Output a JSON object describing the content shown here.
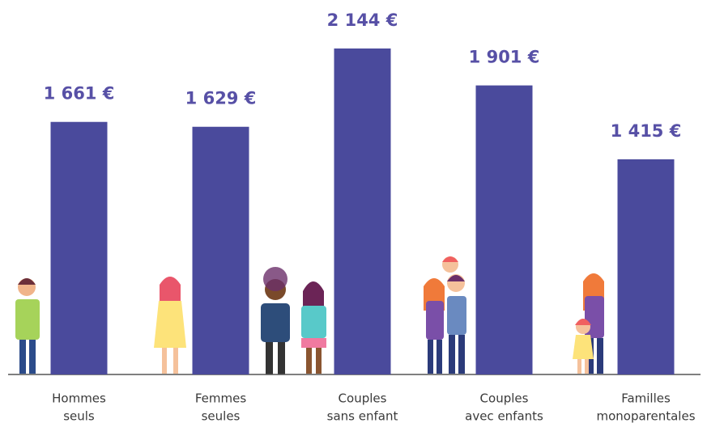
{
  "chart_data": {
    "type": "bar",
    "categories": [
      [
        "Hommes",
        "seuls"
      ],
      [
        "Femmes",
        "seules"
      ],
      [
        "Couples",
        "sans enfant"
      ],
      [
        "Couples",
        "avec enfants"
      ],
      [
        "Familles",
        "monoparentales"
      ]
    ],
    "values": [
      1661,
      1629,
      2144,
      1901,
      1415
    ],
    "value_labels": [
      "1 661 €",
      "1 629 €",
      "2 144 €",
      "1 901 €",
      "1 415 €"
    ],
    "color": "#4a4a9c",
    "ylim": [
      0,
      2400
    ]
  }
}
